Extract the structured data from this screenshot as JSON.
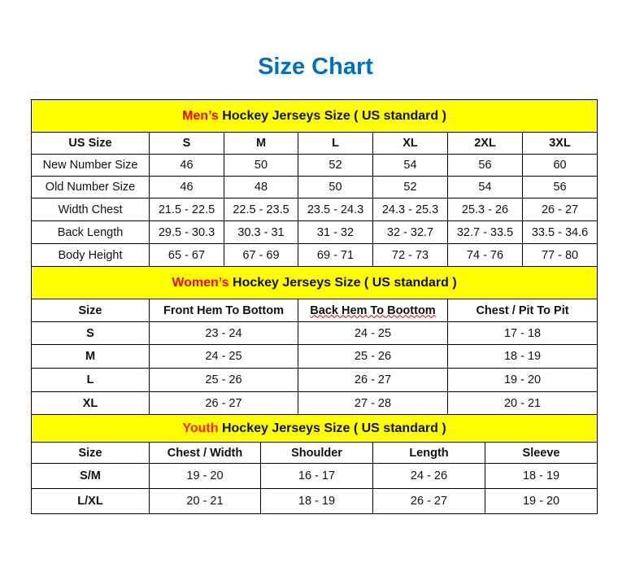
{
  "title": "Size Chart",
  "men": {
    "highlight": "Men’s",
    "rest": " Hockey Jerseys Size ( US standard )",
    "header": [
      "US Size",
      "S",
      "M",
      "L",
      "XL",
      "2XL",
      "3XL"
    ],
    "rows": [
      [
        "New Number Size",
        "46",
        "50",
        "52",
        "54",
        "56",
        "60"
      ],
      [
        "Old Number Size",
        "46",
        "48",
        "50",
        "52",
        "54",
        "56"
      ],
      [
        "Width Chest",
        "21.5 - 22.5",
        "22.5 - 23.5",
        "23.5 - 24.3",
        "24.3 - 25.3",
        "25.3 - 26",
        "26 - 27"
      ],
      [
        "Back Length",
        "29.5 - 30.3",
        "30.3 - 31",
        "31 - 32",
        "32 - 32.7",
        "32.7 - 33.5",
        "33.5 - 34.6"
      ],
      [
        "Body Height",
        "65 - 67",
        "67 - 69",
        "69 - 71",
        "72 - 73",
        "74 - 76",
        "77 - 80"
      ]
    ]
  },
  "women": {
    "highlight": "Women’s",
    "rest": " Hockey Jerseys Size ( US standard )",
    "header": [
      "Size",
      "Front Hem To Bottom",
      "Back Hem To Boottom",
      "Chest / Pit To Pit"
    ],
    "rows": [
      [
        "S",
        "23 - 24",
        "24 - 25",
        "17 - 18"
      ],
      [
        "M",
        "24 - 25",
        "25 - 26",
        "18 - 19"
      ],
      [
        "L",
        "25 - 26",
        "26 - 27",
        "19 - 20"
      ],
      [
        "XL",
        "26 - 27",
        "27 - 28",
        "20 - 21"
      ]
    ]
  },
  "youth": {
    "highlight": "Youth",
    "rest": " Hockey Jerseys Size ( US standard )",
    "header": [
      "Size",
      "Chest / Width",
      "Shoulder",
      "Length",
      "Sleeve"
    ],
    "rows": [
      [
        "S/M",
        "19 - 20",
        "16 - 17",
        "24 - 26",
        "18 - 19"
      ],
      [
        "L/XL",
        "20 - 21",
        "18 - 19",
        "26 - 27",
        "19 - 20"
      ]
    ]
  },
  "colors": {
    "title": "#0070C0",
    "band": "#FFFF00",
    "highlight": "#FF0000"
  }
}
